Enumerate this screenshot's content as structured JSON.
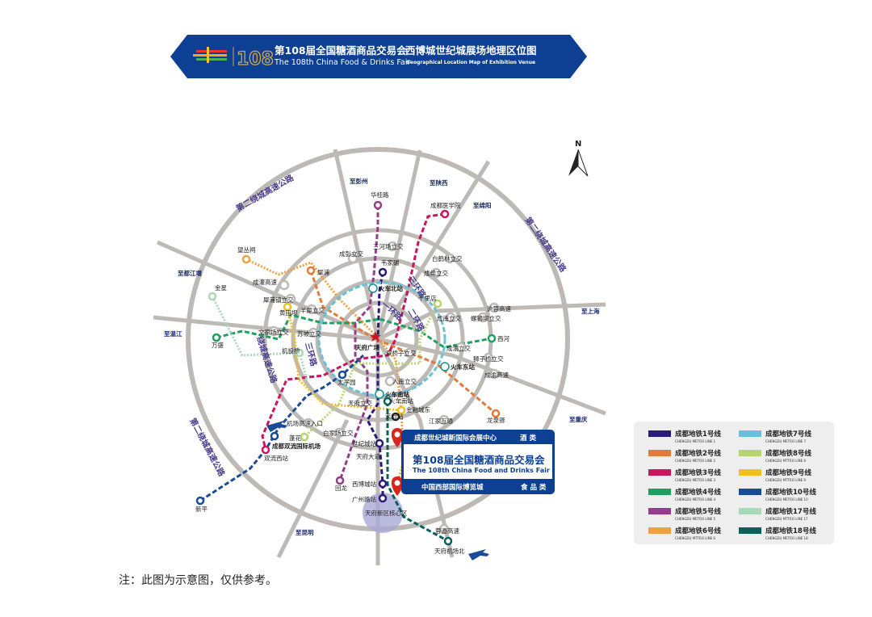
{
  "header": {
    "logo_number": "108",
    "title_cn": "第108届全国糖酒商品交易会",
    "title_en": "The 108th China Food & Drinks Fair",
    "subtitle_cn": "西博城世纪城展场地理区位图",
    "subtitle_en": "Geographical Location Map of Exhibition Venue",
    "color": "#0d3f93"
  },
  "compass": "N",
  "event_box": {
    "top_venue": "成都世纪城新国际会展中心",
    "top_category": "酒 类",
    "title_cn": "第108届全国糖酒商品交易会",
    "title_en": "The  108th  China Food and Drinks Fair",
    "bottom_venue": "中国西部国际博览城",
    "bottom_category": "食 品 类"
  },
  "legend": [
    {
      "cn": "成都地铁1号线",
      "en": "CHENGDU METRO LINE 1",
      "color": "#2a1a7a"
    },
    {
      "cn": "成都地铁2号线",
      "en": "CHENGDU METRO LINE 2",
      "color": "#e27a3a"
    },
    {
      "cn": "成都地铁3号线",
      "en": "CHENGDU METRO LINE 3",
      "color": "#c8175d"
    },
    {
      "cn": "成都地铁4号线",
      "en": "CHENGDU METRO LINE 4",
      "color": "#20a060"
    },
    {
      "cn": "成都地铁5号线",
      "en": "CHENGDU METRO LINE 5",
      "color": "#943d8a"
    },
    {
      "cn": "成都地铁6号线",
      "en": "CHENGDU MTTRO LINE 6",
      "color": "#f0a040"
    },
    {
      "cn": "成都地铁7号线",
      "en": "CHENGDU METRO LINE 7",
      "color": "#6ac0d8"
    },
    {
      "cn": "成都地铁8号线",
      "en": "CHENGDU MTTRO LINE 8",
      "color": "#b8d470"
    },
    {
      "cn": "成都地铁9号线",
      "en": "CHENGDU MTTRO LINE 9",
      "color": "#f0c020"
    },
    {
      "cn": "成都地铁10号线",
      "en": "CHENGDU METRO LINE 10",
      "color": "#1a4a9a"
    },
    {
      "cn": "成都地铁17号线",
      "en": "CHENGDU MTTRO LINE 17",
      "color": "#a8d8b8"
    },
    {
      "cn": "成都地铁18号线",
      "en": "CHENGDU METRO LINE 18",
      "color": "#0a6058"
    }
  ],
  "map": {
    "center_label": "天府广场",
    "directions": [
      "至彭州",
      "至陕西",
      "至绵阳",
      "至都江堰",
      "至温江",
      "至上海",
      "至重庆",
      "至昆明"
    ],
    "ring_labels": [
      "第二绕城高速公路",
      "第二绕城高速公路",
      "第二绕城高速公路",
      "绕城高速公路",
      "三环路",
      "三环路",
      "二环路",
      "一环路"
    ],
    "interchanges": [
      "成彭立交",
      "三河场立交",
      "白鹤林立交",
      "成绵立交",
      "成南立交",
      "螺狮坝立交",
      "沪蓉高速",
      "成渝立交",
      "狮子桥立交",
      "双桥子立交",
      "蓉遵高速",
      "成灌高速",
      "犀浦镇立交",
      "羊犀立交",
      "文家场立交",
      "苏坡立交",
      "人南立交",
      "天府立交",
      "机场高速入口",
      "白家场立交",
      "江家互通",
      "成渝高速"
    ],
    "stations": [
      "华桂路",
      "成都医学院",
      "望丛祠",
      "犀浦",
      "金星",
      "万盛",
      "韦家碾",
      "十里店",
      "西河",
      "龙泉驿",
      "金融城东",
      "火车南站",
      "天府站",
      "太平园",
      "机投桥",
      "黄田坝",
      "双流西站",
      "新平",
      "蓬花",
      "世纪城站",
      "天府大道",
      "回龙",
      "西博城站",
      "广州路站",
      "天府新区核心区",
      "天府机场北"
    ],
    "railway_stations": [
      "火车北站",
      "火车东站",
      "火车南站"
    ],
    "airport": "成都双流国际机场"
  },
  "note": "注：此图为示意图，仅供参考。"
}
